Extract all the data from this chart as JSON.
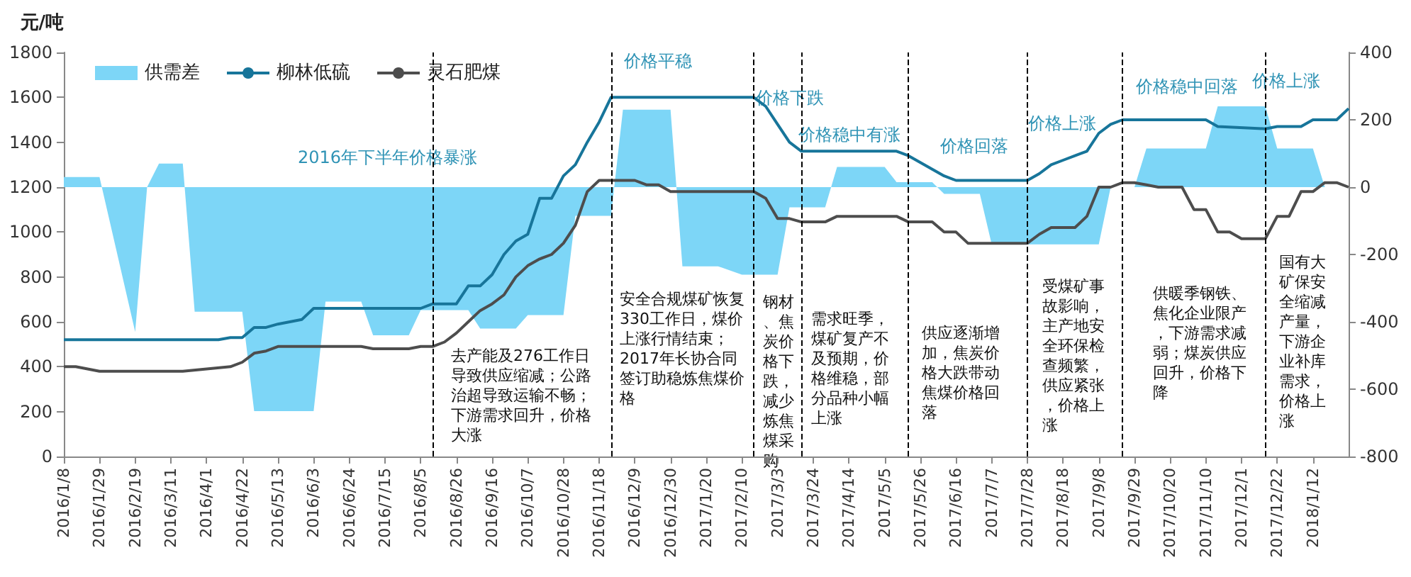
{
  "chart_data": {
    "type": "line",
    "ylabel": "元/吨",
    "legend": "top left",
    "marker": "none",
    "xlim": [
      "2016-01-08",
      "2018-02-02"
    ],
    "xticks": [
      {
        "value": "2016-01-08",
        "label": "2016/1/8"
      },
      {
        "value": "2016-01-29",
        "label": "2016/1/29"
      },
      {
        "value": "2016-02-19",
        "label": "2016/2/19"
      },
      {
        "value": "2016-03-11",
        "label": "2016/3/11"
      },
      {
        "value": "2016-04-01",
        "label": "2016/4/1"
      },
      {
        "value": "2016-04-22",
        "label": "2016/4/22"
      },
      {
        "value": "2016-05-13",
        "label": "2016/5/13"
      },
      {
        "value": "2016-06-03",
        "label": "2016/6/3"
      },
      {
        "value": "2016-06-24",
        "label": "2016/6/24"
      },
      {
        "value": "2016-07-15",
        "label": "2016/7/15"
      },
      {
        "value": "2016-08-05",
        "label": "2016/8/5"
      },
      {
        "value": "2016-08-26",
        "label": "2016/8/26"
      },
      {
        "value": "2016-09-16",
        "label": "2016/9/16"
      },
      {
        "value": "2016-10-07",
        "label": "2016/10/7"
      },
      {
        "value": "2016-10-28",
        "label": "2016/10/28"
      },
      {
        "value": "2016-11-18",
        "label": "2016/11/18"
      },
      {
        "value": "2016-12-09",
        "label": "2016/12/9"
      },
      {
        "value": "2016-12-30",
        "label": "2016/12/30"
      },
      {
        "value": "2017-01-20",
        "label": "2017/1/20"
      },
      {
        "value": "2017-02-10",
        "label": "2017/2/10"
      },
      {
        "value": "2017-03-03",
        "label": "2017/3/3"
      },
      {
        "value": "2017-03-24",
        "label": "2017/3/24"
      },
      {
        "value": "2017-04-14",
        "label": "2017/4/14"
      },
      {
        "value": "2017-05-05",
        "label": "2017/5/5"
      },
      {
        "value": "2017-05-26",
        "label": "2017/5/26"
      },
      {
        "value": "2017-06-16",
        "label": "2017/6/16"
      },
      {
        "value": "2017-07-07",
        "label": "2017/7/7"
      },
      {
        "value": "2017-07-28",
        "label": "2017/7/28"
      },
      {
        "value": "2017-08-18",
        "label": "2017/8/18"
      },
      {
        "value": "2017-09-08",
        "label": "2017/9/8"
      },
      {
        "value": "2017-09-29",
        "label": "2017/9/29"
      },
      {
        "value": "2017-10-20",
        "label": "2017/10/20"
      },
      {
        "value": "2017-11-10",
        "label": "2017/11/10"
      },
      {
        "value": "2017-12-01",
        "label": "2017/12/1"
      },
      {
        "value": "2017-12-22",
        "label": "2017/12/22"
      },
      {
        "value": "2018-01-12",
        "label": "2018/1/12"
      }
    ],
    "ylim": [
      0,
      1800
    ],
    "yticks": [
      0,
      200,
      400,
      600,
      800,
      1000,
      1200,
      1400,
      1600,
      1800
    ],
    "y2lim": [
      -800,
      400
    ],
    "y2ticks": [
      -800,
      -600,
      -400,
      -200,
      0,
      200,
      400
    ],
    "series": [
      {
        "name": "供需差",
        "type": "area",
        "axis": "y2",
        "color": "#7dd6f7",
        "x": [
          "2016-01-08",
          "2016-01-29",
          "2016-02-19",
          "2016-02-26",
          "2016-03-04",
          "2016-03-18",
          "2016-03-25",
          "2016-04-22",
          "2016-04-29",
          "2016-06-03",
          "2016-06-10",
          "2016-07-01",
          "2016-07-08",
          "2016-07-29",
          "2016-08-05",
          "2016-09-02",
          "2016-09-09",
          "2016-09-30",
          "2016-10-07",
          "2016-10-28",
          "2016-11-04",
          "2016-11-25",
          "2016-12-02",
          "2016-12-30",
          "2017-01-06",
          "2017-01-27",
          "2017-02-10",
          "2017-03-03",
          "2017-03-10",
          "2017-03-31",
          "2017-04-07",
          "2017-05-05",
          "2017-05-12",
          "2017-06-02",
          "2017-06-09",
          "2017-06-30",
          "2017-07-07",
          "2017-09-08",
          "2017-09-15",
          "2017-09-29",
          "2017-10-06",
          "2017-11-10",
          "2017-11-17",
          "2017-12-15",
          "2017-12-22",
          "2018-01-12",
          "2018-01-19",
          "2018-02-02"
        ],
        "values": [
          30,
          30,
          -430,
          0,
          70,
          70,
          -370,
          -370,
          -665,
          -665,
          -340,
          -340,
          -440,
          -440,
          -365,
          -365,
          -420,
          -420,
          -380,
          -380,
          -85,
          -85,
          230,
          230,
          -235,
          -235,
          -260,
          -260,
          -60,
          -60,
          60,
          60,
          15,
          15,
          -20,
          -20,
          -170,
          -170,
          0,
          0,
          115,
          115,
          240,
          240,
          115,
          115,
          0,
          0
        ]
      },
      {
        "name": "柳林低硫",
        "color": "#17759a",
        "x": [
          "2016-01-08",
          "2016-04-08",
          "2016-04-15",
          "2016-04-22",
          "2016-04-29",
          "2016-05-06",
          "2016-05-13",
          "2016-05-27",
          "2016-06-03",
          "2016-08-05",
          "2016-08-12",
          "2016-08-26",
          "2016-09-02",
          "2016-09-09",
          "2016-09-16",
          "2016-09-23",
          "2016-09-30",
          "2016-10-07",
          "2016-10-14",
          "2016-10-21",
          "2016-10-28",
          "2016-11-04",
          "2016-11-11",
          "2016-11-18",
          "2016-11-25",
          "2017-02-17",
          "2017-02-24",
          "2017-03-03",
          "2017-03-10",
          "2017-03-17",
          "2017-05-12",
          "2017-05-19",
          "2017-05-26",
          "2017-06-02",
          "2017-06-09",
          "2017-06-16",
          "2017-07-28",
          "2017-08-04",
          "2017-08-11",
          "2017-08-18",
          "2017-08-25",
          "2017-09-01",
          "2017-09-08",
          "2017-09-15",
          "2017-09-22",
          "2017-11-10",
          "2017-11-17",
          "2017-12-15",
          "2017-12-22",
          "2018-01-05",
          "2018-01-12",
          "2018-01-26",
          "2018-02-02"
        ],
        "values": [
          520,
          520,
          530,
          530,
          575,
          575,
          590,
          610,
          660,
          660,
          680,
          680,
          760,
          760,
          810,
          900,
          960,
          990,
          1150,
          1150,
          1250,
          1300,
          1400,
          1490,
          1600,
          1600,
          1560,
          1480,
          1400,
          1360,
          1360,
          1340,
          1310,
          1280,
          1250,
          1230,
          1230,
          1260,
          1300,
          1320,
          1340,
          1360,
          1440,
          1480,
          1500,
          1500,
          1470,
          1460,
          1470,
          1470,
          1500,
          1500,
          1550
        ]
      },
      {
        "name": "灵石肥煤",
        "color": "#4d4d4d",
        "x": [
          "2016-01-08",
          "2016-01-15",
          "2016-01-29",
          "2016-03-18",
          "2016-04-01",
          "2016-04-15",
          "2016-04-22",
          "2016-04-29",
          "2016-05-06",
          "2016-05-13",
          "2016-07-01",
          "2016-07-08",
          "2016-07-29",
          "2016-08-05",
          "2016-08-12",
          "2016-08-19",
          "2016-08-26",
          "2016-09-02",
          "2016-09-09",
          "2016-09-16",
          "2016-09-23",
          "2016-09-30",
          "2016-10-07",
          "2016-10-14",
          "2016-10-21",
          "2016-10-28",
          "2016-11-04",
          "2016-11-11",
          "2016-11-18",
          "2016-12-09",
          "2016-12-16",
          "2016-12-23",
          "2016-12-30",
          "2017-02-17",
          "2017-02-24",
          "2017-03-03",
          "2017-03-10",
          "2017-03-17",
          "2017-03-31",
          "2017-04-07",
          "2017-05-12",
          "2017-05-19",
          "2017-06-02",
          "2017-06-09",
          "2017-06-16",
          "2017-06-23",
          "2017-07-28",
          "2017-08-04",
          "2017-08-11",
          "2017-08-25",
          "2017-09-01",
          "2017-09-08",
          "2017-09-15",
          "2017-09-22",
          "2017-09-29",
          "2017-10-06",
          "2017-10-13",
          "2017-10-27",
          "2017-11-03",
          "2017-11-10",
          "2017-11-17",
          "2017-11-24",
          "2017-12-01",
          "2017-12-15",
          "2017-12-22",
          "2017-12-29",
          "2018-01-05",
          "2018-01-12",
          "2018-01-19",
          "2018-01-26",
          "2018-02-02"
        ],
        "values": [
          400,
          400,
          380,
          380,
          390,
          400,
          420,
          460,
          470,
          490,
          490,
          480,
          480,
          490,
          490,
          510,
          550,
          600,
          650,
          680,
          720,
          800,
          850,
          880,
          900,
          950,
          1030,
          1180,
          1230,
          1230,
          1210,
          1210,
          1180,
          1180,
          1150,
          1060,
          1060,
          1045,
          1045,
          1070,
          1070,
          1045,
          1045,
          1000,
          1000,
          950,
          950,
          990,
          1020,
          1020,
          1070,
          1200,
          1200,
          1220,
          1220,
          1210,
          1200,
          1200,
          1100,
          1100,
          1000,
          1000,
          970,
          970,
          1070,
          1070,
          1180,
          1180,
          1220,
          1220,
          1200
        ]
      }
    ],
    "ref_lines": [
      {
        "axis": "x",
        "value": "2016-08-12",
        "line_style": "dashed",
        "color": "#000000"
      },
      {
        "axis": "x",
        "value": "2016-11-25",
        "line_style": "dashed",
        "color": "#000000"
      },
      {
        "axis": "x",
        "value": "2017-02-17",
        "line_style": "dashed",
        "color": "#000000"
      },
      {
        "axis": "x",
        "value": "2017-03-17",
        "line_style": "dashed",
        "color": "#000000"
      },
      {
        "axis": "x",
        "value": "2017-05-19",
        "line_style": "dashed",
        "color": "#000000"
      },
      {
        "axis": "x",
        "value": "2017-07-28",
        "line_style": "dashed",
        "color": "#000000"
      },
      {
        "axis": "x",
        "value": "2017-09-22",
        "line_style": "dashed",
        "color": "#000000"
      },
      {
        "axis": "x",
        "value": "2017-12-15",
        "line_style": "dashed",
        "color": "#000000"
      }
    ],
    "annotations": [
      "2016年下半年价格暴涨",
      "价格平稳",
      "价格下跌",
      "价格稳中有涨",
      "价格回落",
      "价格上涨",
      "价格稳中回落",
      "价格上涨",
      "去产能及276工作日导致供应缩减；公路治超导致运输不畅；下游需求回升，价格大涨",
      "安全合规煤矿恢复330工作日，煤价上涨行情结束；2017年长协合同签订助稳炼焦煤价格",
      "钢材、焦炭价格下跌，减少炼焦煤采购",
      "需求旺季，煤矿复产不及预期，价格维稳，部分品种小幅上涨",
      "供应逐渐增加，焦炭价格大跌带动焦煤价格回落",
      "受煤矿事故影响，主产地安全环保检查频繁，供应紧张，价格上涨",
      "供暖季钢铁、焦化企业限产，下游需求减弱；煤炭供应回升，价格下降",
      "国有大矿保安全缩减产量，下游企业补库需求，价格上涨"
    ]
  }
}
